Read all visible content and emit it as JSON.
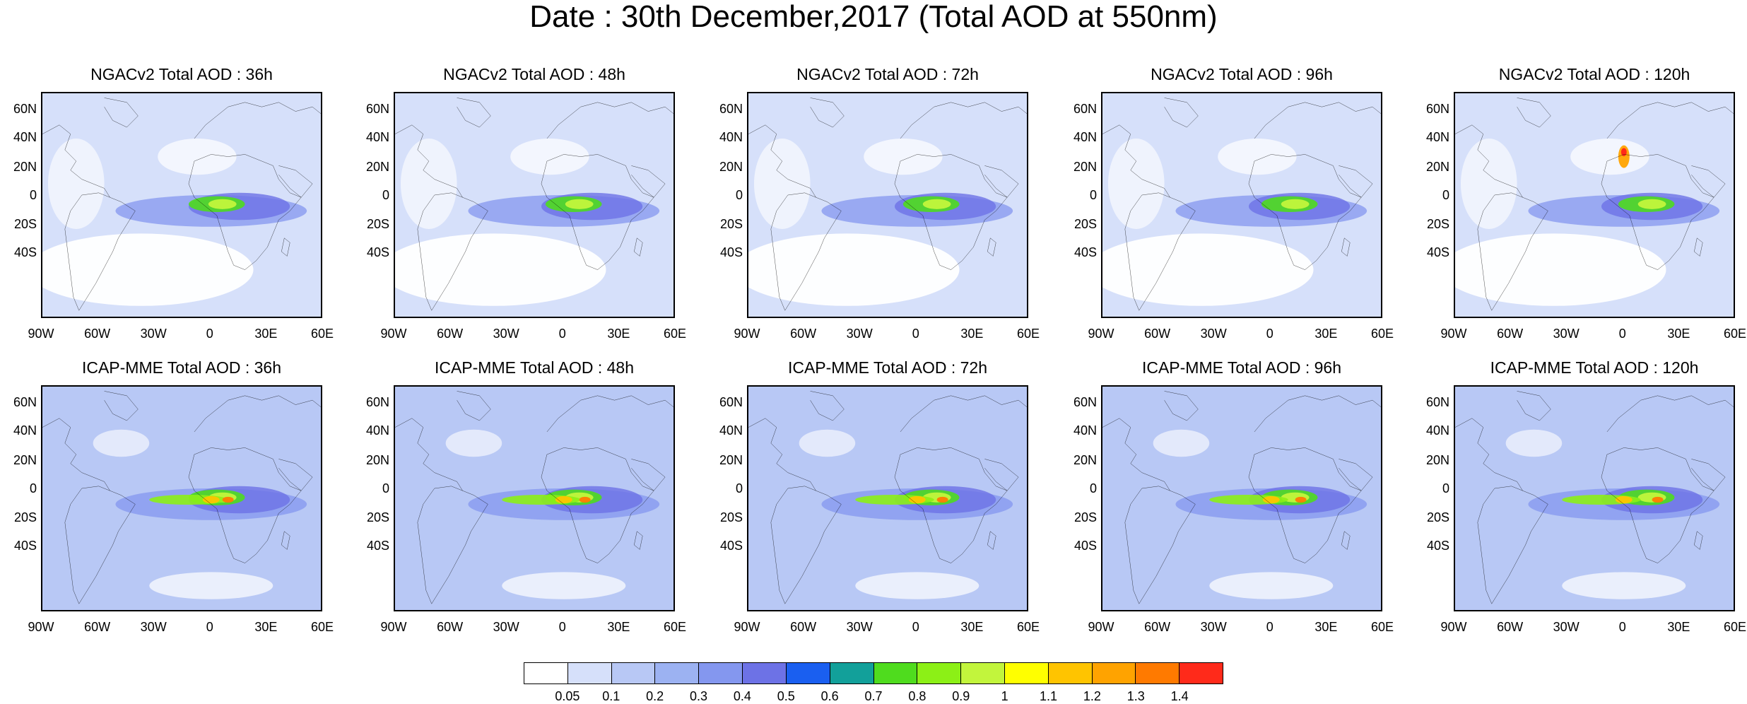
{
  "title": "Date : 30th December,2017 (Total AOD at 550nm)",
  "panels": [
    {
      "title": "NGACv2 Total AOD : 36h",
      "model": "NGACv2",
      "lead": "36h"
    },
    {
      "title": "NGACv2 Total AOD : 48h",
      "model": "NGACv2",
      "lead": "48h"
    },
    {
      "title": "NGACv2 Total AOD : 72h",
      "model": "NGACv2",
      "lead": "72h"
    },
    {
      "title": "NGACv2 Total AOD : 96h",
      "model": "NGACv2",
      "lead": "96h"
    },
    {
      "title": "NGACv2 Total AOD : 120h",
      "model": "NGACv2",
      "lead": "120h"
    },
    {
      "title": "ICAP-MME Total AOD : 36h",
      "model": "ICAP-MME",
      "lead": "36h"
    },
    {
      "title": "ICAP-MME Total AOD : 48h",
      "model": "ICAP-MME",
      "lead": "48h"
    },
    {
      "title": "ICAP-MME Total AOD : 72h",
      "model": "ICAP-MME",
      "lead": "72h"
    },
    {
      "title": "ICAP-MME Total AOD : 96h",
      "model": "ICAP-MME",
      "lead": "96h"
    },
    {
      "title": "ICAP-MME Total AOD : 120h",
      "model": "ICAP-MME",
      "lead": "120h"
    }
  ],
  "lat_ticks": [
    "60N",
    "40N",
    "20N",
    "0",
    "20S",
    "40S"
  ],
  "lon_ticks": [
    "90W",
    "60W",
    "30W",
    "0",
    "30E",
    "60E"
  ],
  "colorbar": {
    "colors": [
      "#ffffff",
      "#d6e0fa",
      "#b8c8f5",
      "#9cb2f2",
      "#8497ef",
      "#6d72e6",
      "#1a5ff0",
      "#12a09a",
      "#4fdc1e",
      "#8cf016",
      "#c2f53c",
      "#ffff00",
      "#ffc400",
      "#ffa300",
      "#ff7a00",
      "#ff2a1a"
    ],
    "labels": [
      "0.05",
      "0.1",
      "0.2",
      "0.3",
      "0.4",
      "0.5",
      "0.6",
      "0.7",
      "0.8",
      "0.9",
      "1",
      "1.1",
      "1.2",
      "1.3",
      "1.4"
    ]
  }
}
